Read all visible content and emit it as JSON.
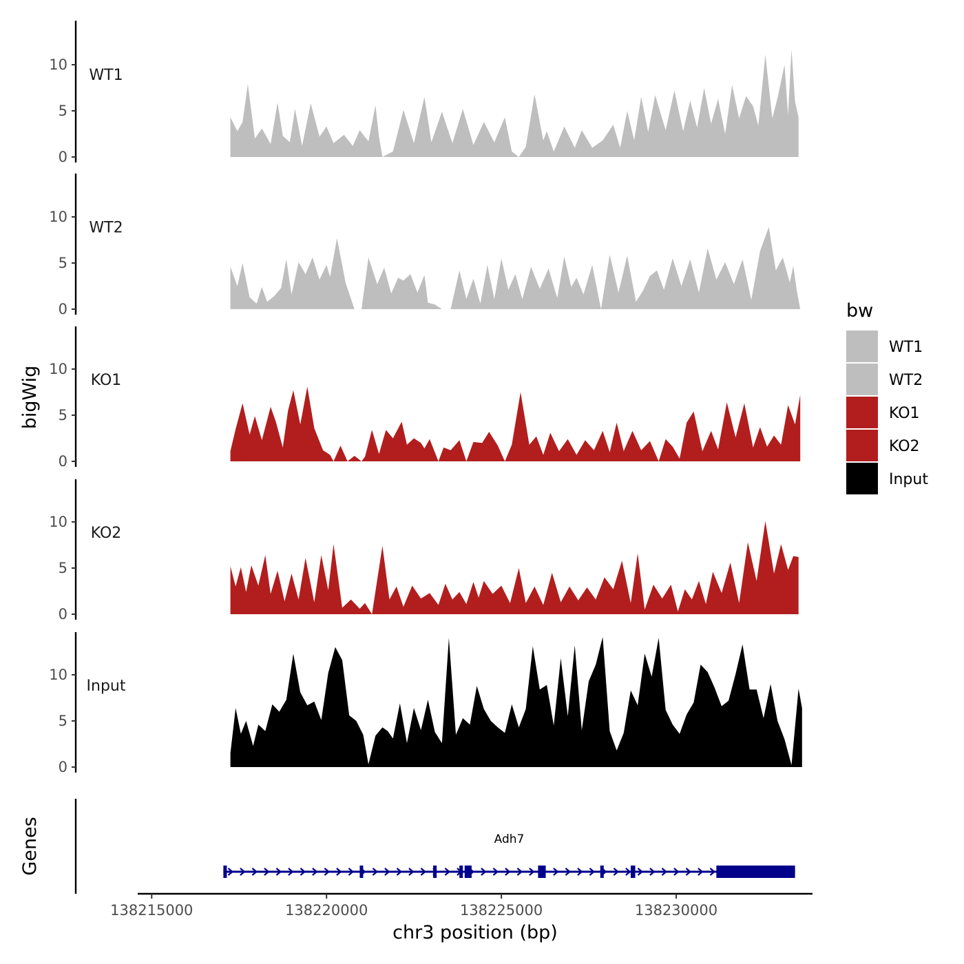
{
  "chart_data": {
    "type": "area",
    "title": "",
    "xlabel": "chr3 position (bp)",
    "ylabel": "bigWig",
    "genes_panel_label": "Genes",
    "xlim": [
      138214600,
      138233900
    ],
    "x_ticks": [
      138215000,
      138220000,
      138225000,
      138230000
    ],
    "x_tick_labels": [
      "138215000",
      "138220000",
      "138225000",
      "138230000"
    ],
    "ylim": [
      0,
      14.5
    ],
    "y_ticks": [
      0,
      5,
      10
    ],
    "y_tick_labels": [
      "0",
      "5",
      "10"
    ],
    "legend": {
      "title": "bw",
      "position": "right",
      "entries": [
        {
          "label": "WT1",
          "color": "#bebebe"
        },
        {
          "label": "WT2",
          "color": "#bebebe"
        },
        {
          "label": "KO1",
          "color": "#b21e1e"
        },
        {
          "label": "KO2",
          "color": "#b21e1e"
        },
        {
          "label": "Input",
          "color": "#000000"
        }
      ]
    },
    "series": [
      {
        "name": "WT1",
        "color": "#bebebe",
        "x": [
          138217250,
          138217450,
          138217600,
          138217750,
          138217950,
          138218150,
          138218400,
          138218600,
          138218750,
          138218950,
          138219100,
          138219300,
          138219550,
          138219800,
          138220000,
          138220200,
          138220500,
          138220750,
          138220950,
          138221200,
          138221400,
          138221500,
          138221600,
          138221900,
          138222200,
          138222500,
          138222800,
          138223000,
          138223300,
          138223600,
          138223900,
          138224200,
          138224500,
          138224800,
          138225100,
          138225300,
          138225500,
          138225700,
          138225950,
          138226200,
          138226300,
          138226500,
          138226800,
          138227100,
          138227300,
          138227600,
          138227900,
          138228200,
          138228400,
          138228600,
          138228800,
          138229000,
          138229200,
          138229400,
          138229700,
          138229950,
          138230200,
          138230400,
          138230600,
          138230800,
          138231000,
          138231200,
          138231400,
          138231600,
          138231800,
          138232000,
          138232200,
          138232350,
          138232550,
          138232750,
          138232900,
          138233100,
          138233200,
          138233300,
          138233400,
          138233500
        ],
        "y": [
          4.3,
          2.8,
          3.8,
          7.9,
          2.0,
          3.1,
          1.4,
          5.9,
          2.3,
          1.6,
          5.2,
          1.2,
          5.8,
          2.2,
          3.3,
          1.5,
          2.4,
          1.2,
          2.9,
          1.7,
          5.6,
          2.2,
          0,
          0.6,
          5.1,
          1.5,
          6.5,
          1.6,
          4.9,
          1.5,
          5.2,
          1.3,
          3.8,
          1.6,
          4.3,
          0.6,
          0,
          1.1,
          6.8,
          1.8,
          2.8,
          0.6,
          3.3,
          1.0,
          2.9,
          1.0,
          1.8,
          3.5,
          1.0,
          5.0,
          1.8,
          6.5,
          2.7,
          6.7,
          2.9,
          7.2,
          2.8,
          6.1,
          3.2,
          7.5,
          3.6,
          6.3,
          2.5,
          7.8,
          4.2,
          6.6,
          5.5,
          3.4,
          11.1,
          4.2,
          6.4,
          10.0,
          4.5,
          11.7,
          6.0,
          4.3
        ]
      },
      {
        "name": "WT2",
        "color": "#bebebe",
        "x": [
          138217250,
          138217450,
          138217600,
          138217800,
          138218000,
          138218150,
          138218300,
          138218500,
          138218700,
          138218850,
          138219000,
          138219200,
          138219400,
          138219600,
          138219800,
          138220000,
          138220100,
          138220300,
          138220550,
          138220800,
          138221000,
          138221200,
          138221450,
          138221650,
          138221850,
          138222050,
          138222200,
          138222400,
          138222600,
          138222800,
          138222900,
          138223100,
          138223300,
          138223550,
          138223800,
          138224000,
          138224200,
          138224400,
          138224600,
          138224800,
          138225000,
          138225200,
          138225400,
          138225600,
          138225850,
          138226100,
          138226350,
          138226600,
          138226800,
          138227000,
          138227150,
          138227350,
          138227600,
          138227850,
          138228100,
          138228350,
          138228600,
          138228850,
          138229050,
          138229250,
          138229450,
          138229650,
          138229900,
          138230150,
          138230400,
          138230650,
          138230900,
          138231150,
          138231400,
          138231650,
          138231900,
          138232150,
          138232400,
          138232650,
          138232850,
          138233050,
          138233250,
          138233350,
          138233450,
          138233550
        ],
        "y": [
          4.6,
          2.5,
          5.0,
          1.3,
          0.6,
          2.4,
          0.8,
          1.4,
          2.3,
          5.4,
          1.6,
          5.1,
          3.8,
          5.6,
          3.2,
          4.8,
          3.5,
          7.7,
          2.8,
          0,
          0,
          5.6,
          2.7,
          4.5,
          1.7,
          3.4,
          3.1,
          3.8,
          1.8,
          3.7,
          0.7,
          0.5,
          0,
          0,
          4.2,
          1.1,
          3.3,
          0.6,
          4.8,
          1.1,
          5.5,
          2.1,
          3.8,
          1.1,
          4.6,
          2.2,
          4.4,
          1.2,
          5.7,
          2.4,
          3.4,
          1.6,
          4.8,
          0,
          5.9,
          1.8,
          5.8,
          0.8,
          2.0,
          3.6,
          4.2,
          2.1,
          5.5,
          2.5,
          5.4,
          1.8,
          6.6,
          3.2,
          5.1,
          2.7,
          5.4,
          1.0,
          6.3,
          8.9,
          4.2,
          5.6,
          2.9,
          4.7,
          2.0,
          0
        ]
      },
      {
        "name": "KO1",
        "color": "#b21e1e",
        "x": [
          138217250,
          138217400,
          138217600,
          138217800,
          138217950,
          138218150,
          138218400,
          138218550,
          138218750,
          138218900,
          138219050,
          138219250,
          138219450,
          138219650,
          138219900,
          138220100,
          138220200,
          138220400,
          138220600,
          138220800,
          138221000,
          138221100,
          138221300,
          138221500,
          138221700,
          138221900,
          138222150,
          138222300,
          138222500,
          138222700,
          138222800,
          138222950,
          138223200,
          138223350,
          138223550,
          138223800,
          138224000,
          138224200,
          138224450,
          138224650,
          138224900,
          138225100,
          138225300,
          138225550,
          138225800,
          138226000,
          138226200,
          138226400,
          138226650,
          138226900,
          138227150,
          138227400,
          138227650,
          138227900,
          138228100,
          138228300,
          138228500,
          138228750,
          138229000,
          138229250,
          138229500,
          138229700,
          138229900,
          138230100,
          138230300,
          138230500,
          138230750,
          138231000,
          138231200,
          138231450,
          138231700,
          138231950,
          138232200,
          138232400,
          138232600,
          138232800,
          138233000,
          138233200,
          138233400,
          138233550
        ],
        "y": [
          1.1,
          3.5,
          6.3,
          2.9,
          4.9,
          2.3,
          5.9,
          4.3,
          1.5,
          5.5,
          7.7,
          4.0,
          8.1,
          3.6,
          1.2,
          0.7,
          0,
          1.7,
          0,
          0.6,
          0,
          0.5,
          3.4,
          0.8,
          3.4,
          2.5,
          4.3,
          1.8,
          2.5,
          2.0,
          1.4,
          2.4,
          0,
          1.5,
          1.2,
          2.3,
          0,
          2.1,
          2.0,
          3.2,
          1.7,
          0,
          1.8,
          7.5,
          1.8,
          2.7,
          0.7,
          3.1,
          1.1,
          2.4,
          0.7,
          2.3,
          1.2,
          3.3,
          1.0,
          4.2,
          1.1,
          3.3,
          1.2,
          2.2,
          0,
          2.4,
          1.6,
          0.3,
          4.2,
          5.4,
          1.1,
          3.3,
          1.3,
          6.4,
          2.6,
          6.3,
          1.5,
          3.7,
          1.6,
          2.8,
          1.8,
          6.1,
          4.0,
          7.2
        ]
      },
      {
        "name": "KO2",
        "color": "#b21e1e",
        "x": [
          138217250,
          138217400,
          138217550,
          138217700,
          138217850,
          138218050,
          138218250,
          138218400,
          138218600,
          138218800,
          138219000,
          138219200,
          138219400,
          138219650,
          138219850,
          138220050,
          138220200,
          138220450,
          138220700,
          138220950,
          138221100,
          138221300,
          138221600,
          138221800,
          138222000,
          138222200,
          138222450,
          138222700,
          138222950,
          138223200,
          138223400,
          138223600,
          138223800,
          138224000,
          138224200,
          138224350,
          138224500,
          138224750,
          138225000,
          138225250,
          138225500,
          138225700,
          138225950,
          138226200,
          138226450,
          138226700,
          138226950,
          138227200,
          138227450,
          138227700,
          138227950,
          138228200,
          138228450,
          138228700,
          138228900,
          138229100,
          138229350,
          138229600,
          138229850,
          138230050,
          138230250,
          138230450,
          138230650,
          138230850,
          138231050,
          138231300,
          138231550,
          138231800,
          138232050,
          138232300,
          138232550,
          138232800,
          138233000,
          138233200,
          138233350,
          138233500
        ],
        "y": [
          5.2,
          3.0,
          5.1,
          2.4,
          5.3,
          3.1,
          6.4,
          2.2,
          4.7,
          1.4,
          4.4,
          1.6,
          6.1,
          1.3,
          6.4,
          2.6,
          7.6,
          0.7,
          1.6,
          0.6,
          1.2,
          0,
          7.4,
          1.6,
          3.0,
          0.8,
          3.1,
          1.7,
          2.3,
          1.0,
          3.3,
          1.6,
          2.4,
          1.1,
          3.5,
          1.8,
          3.6,
          2.2,
          3.1,
          1.2,
          5.0,
          1.2,
          3.0,
          1.0,
          4.5,
          1.3,
          3.0,
          1.5,
          2.9,
          1.6,
          4.0,
          2.7,
          5.8,
          1.2,
          6.6,
          0.5,
          3.2,
          1.7,
          3.2,
          0.3,
          2.7,
          1.6,
          3.6,
          1.1,
          4.6,
          2.3,
          5.6,
          1.2,
          7.8,
          3.6,
          10.1,
          4.4,
          7.6,
          4.8,
          6.3,
          6.2
        ]
      },
      {
        "name": "Input",
        "color": "#000000",
        "x": [
          138217250,
          138217400,
          138217550,
          138217700,
          138217900,
          138218050,
          138218250,
          138218450,
          138218650,
          138218850,
          138219050,
          138219250,
          138219450,
          138219650,
          138219850,
          138220050,
          138220250,
          138220450,
          138220650,
          138220850,
          138221050,
          138221200,
          138221400,
          138221600,
          138221750,
          138221900,
          138222100,
          138222300,
          138222500,
          138222700,
          138222900,
          138223100,
          138223300,
          138223500,
          138223700,
          138223900,
          138224100,
          138224300,
          138224500,
          138224700,
          138224900,
          138225100,
          138225300,
          138225500,
          138225700,
          138225900,
          138226100,
          138226300,
          138226500,
          138226700,
          138226900,
          138227100,
          138227300,
          138227500,
          138227700,
          138227900,
          138228100,
          138228300,
          138228500,
          138228700,
          138228900,
          138229100,
          138229300,
          138229500,
          138229700,
          138229900,
          138230100,
          138230300,
          138230500,
          138230700,
          138230900,
          138231100,
          138231300,
          138231500,
          138231700,
          138231900,
          138232100,
          138232300,
          138232500,
          138232700,
          138232900,
          138233100,
          138233300,
          138233500,
          138233600
        ],
        "y": [
          1.5,
          6.4,
          3.6,
          5.0,
          2.3,
          4.6,
          3.9,
          6.8,
          6.0,
          7.3,
          12.3,
          8.1,
          6.7,
          7.1,
          5.1,
          10.2,
          13.0,
          11.6,
          5.6,
          5.0,
          3.5,
          0.3,
          3.4,
          4.3,
          3.9,
          3.1,
          6.9,
          2.6,
          6.4,
          4.0,
          7.3,
          3.8,
          2.6,
          14.0,
          3.5,
          5.3,
          4.6,
          8.8,
          6.3,
          5.0,
          4.3,
          3.7,
          6.8,
          4.3,
          6.3,
          13.1,
          8.4,
          8.9,
          4.5,
          11.8,
          5.5,
          13.2,
          4.0,
          9.3,
          11.1,
          14.1,
          3.9,
          1.8,
          3.7,
          8.3,
          6.7,
          12.3,
          9.8,
          14.0,
          6.2,
          4.6,
          3.6,
          5.7,
          7.0,
          11.1,
          10.3,
          8.6,
          6.6,
          7.2,
          10.1,
          13.3,
          8.4,
          8.4,
          5.3,
          9.0,
          5.0,
          3.0,
          0.2,
          8.5,
          6.4
        ]
      }
    ],
    "gene_track": {
      "label": "Adh7",
      "color": "#00008b",
      "strand": "+",
      "start": 138217050,
      "end": 138233400,
      "exons": [
        {
          "start": 138217050,
          "end": 138217120
        },
        {
          "start": 138220950,
          "end": 138221030
        },
        {
          "start": 138223050,
          "end": 138223150
        },
        {
          "start": 138223800,
          "end": 138223900
        },
        {
          "start": 138223950,
          "end": 138224150
        },
        {
          "start": 138226050,
          "end": 138226270
        },
        {
          "start": 138227830,
          "end": 138227920
        },
        {
          "start": 138228700,
          "end": 138228830
        },
        {
          "start": 138231150,
          "end": 138233400
        }
      ]
    }
  }
}
